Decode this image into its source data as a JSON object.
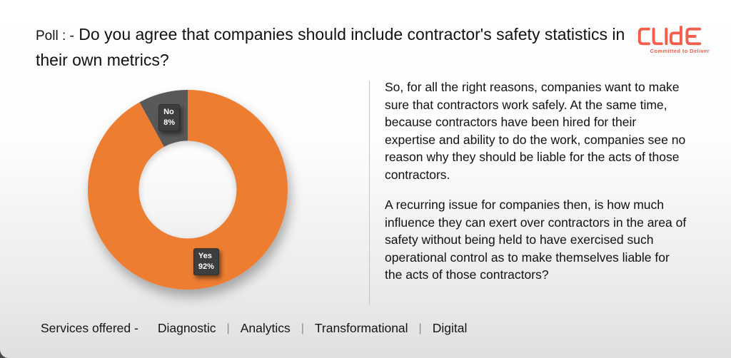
{
  "slide": {
    "title_prefix": "Poll : -",
    "title_main": " Do you agree that companies should include contractor's safety statistics in their own metrics?"
  },
  "logo": {
    "name": "CLIDE",
    "tagline": "Committed to Deliver",
    "color": "#F2604D"
  },
  "chart_data": {
    "type": "pie",
    "subtype": "donut",
    "title": "",
    "categories": [
      "Yes",
      "No"
    ],
    "values": [
      92,
      8
    ],
    "unit": "%",
    "colors": [
      "#ED7D31",
      "#595959"
    ],
    "start_angle_deg": 0,
    "direction": "clockwise",
    "hole_ratio": 0.49,
    "legend": "none",
    "data_labels": [
      {
        "category": "Yes",
        "text": "Yes",
        "value_text": "92%"
      },
      {
        "category": "No",
        "text": "No",
        "value_text": "8%"
      }
    ]
  },
  "commentary": {
    "paragraphs": [
      "So, for all the right reasons, companies want to make sure that contractors work safely. At the same time, because contractors have been hired for their expertise and ability to do the work, companies see no reason why they should be liable for the acts of those contractors.",
      "A recurring issue for companies then, is how much influence they can exert over contractors in the area of safety without being held to have exercised such operational control as to make themselves liable for the acts of those contractors?"
    ]
  },
  "footer": {
    "label": "Services offered -",
    "separator": "|",
    "items": [
      "Diagnostic",
      "Analytics",
      "Transformational",
      "Digital"
    ]
  }
}
